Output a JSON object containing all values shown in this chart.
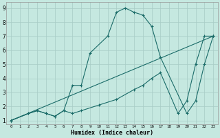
{
  "xlabel": "Humidex (Indice chaleur)",
  "bg_color": "#c5e8e0",
  "line_color": "#1a6b68",
  "grid_color": "#a8ccc6",
  "xlim_min": -0.5,
  "xlim_max": 23.5,
  "ylim_min": 0.75,
  "ylim_max": 9.4,
  "xticks": [
    0,
    1,
    2,
    3,
    4,
    5,
    6,
    7,
    8,
    9,
    10,
    11,
    12,
    13,
    14,
    15,
    16,
    17,
    18,
    19,
    20,
    21,
    22,
    23
  ],
  "yticks": [
    1,
    2,
    3,
    4,
    5,
    6,
    7,
    8,
    9
  ],
  "line1_x": [
    0,
    2,
    3,
    4,
    5,
    6,
    7,
    8,
    9,
    11,
    12,
    13,
    14,
    15,
    16,
    17,
    20,
    21,
    22,
    23
  ],
  "line1_y": [
    1,
    1.5,
    1.7,
    1.5,
    1.3,
    1.7,
    3.5,
    3.5,
    5.8,
    7.0,
    8.7,
    9.0,
    8.7,
    8.5,
    7.7,
    5.5,
    1.5,
    2.4,
    5.0,
    7.0
  ],
  "line2_x": [
    0,
    23
  ],
  "line2_y": [
    1,
    7.0
  ],
  "line3_x": [
    0,
    2,
    3,
    4,
    5,
    6,
    7,
    8,
    10,
    12,
    14,
    15,
    16,
    17,
    19,
    20,
    21,
    22,
    23
  ],
  "line3_y": [
    1,
    1.5,
    1.7,
    1.5,
    1.3,
    1.7,
    1.5,
    1.7,
    2.1,
    2.5,
    3.2,
    3.5,
    4.0,
    4.4,
    1.5,
    2.4,
    5.0,
    7.0,
    7.0
  ]
}
